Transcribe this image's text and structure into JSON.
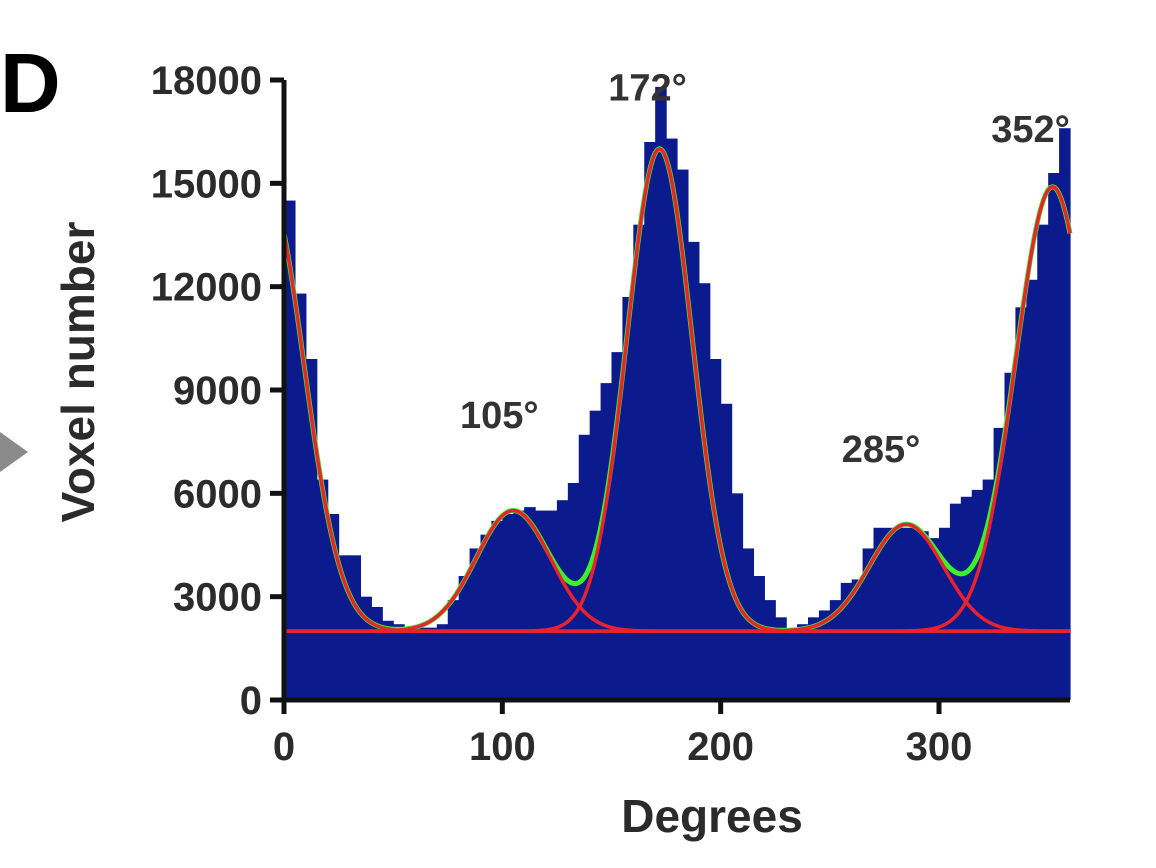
{
  "panel_label": "D",
  "colors": {
    "bars": "#0b1a8c",
    "component_curves": "#e8232f",
    "total_fit": "#3cf02a",
    "axis": "#111111",
    "text": "#2b2b2b",
    "side_arrow": "#8a8a8a"
  },
  "chart_data": {
    "type": "bar",
    "xlabel": "Degrees",
    "ylabel": "Voxel number",
    "xlim": [
      0,
      360
    ],
    "ylim": [
      0,
      18000
    ],
    "xticks": [
      0,
      100,
      200,
      300
    ],
    "yticks": [
      0,
      3000,
      6000,
      9000,
      12000,
      15000,
      18000
    ],
    "bin_width": 5,
    "bin_starts": [
      0,
      5,
      10,
      15,
      20,
      25,
      30,
      35,
      40,
      45,
      50,
      55,
      60,
      65,
      70,
      75,
      80,
      85,
      90,
      95,
      100,
      105,
      110,
      115,
      120,
      125,
      130,
      135,
      140,
      145,
      150,
      155,
      160,
      165,
      170,
      175,
      180,
      185,
      190,
      195,
      200,
      205,
      210,
      215,
      220,
      225,
      230,
      235,
      240,
      245,
      250,
      255,
      260,
      265,
      270,
      275,
      280,
      285,
      290,
      295,
      300,
      305,
      310,
      315,
      320,
      325,
      330,
      335,
      340,
      345,
      350,
      355
    ],
    "counts": [
      14500,
      11800,
      9900,
      6400,
      5400,
      4200,
      4200,
      3000,
      2700,
      2300,
      2200,
      2100,
      2100,
      2100,
      2200,
      2900,
      3600,
      4400,
      4800,
      5200,
      5400,
      5500,
      5600,
      5500,
      5500,
      5800,
      6300,
      7700,
      8400,
      9200,
      10100,
      11700,
      13800,
      16200,
      17800,
      16300,
      15400,
      13300,
      12100,
      9900,
      8600,
      6000,
      4400,
      3600,
      2900,
      2400,
      2000,
      2200,
      2400,
      2600,
      2900,
      3400,
      3500,
      4400,
      5000,
      5000,
      5000,
      5000,
      4900,
      4700,
      5000,
      5700,
      5900,
      6100,
      6400,
      7900,
      9500,
      11400,
      12200,
      13800,
      15300,
      16600
    ],
    "fit_components": [
      {
        "peak": 352,
        "baseline": 2000,
        "height": 12900,
        "sigma": 17
      },
      {
        "peak": 105,
        "baseline": 2000,
        "height": 3500,
        "sigma": 17
      },
      {
        "peak": 172,
        "baseline": 2000,
        "height": 14000,
        "sigma": 15
      },
      {
        "peak": 285,
        "baseline": 2000,
        "height": 3100,
        "sigma": 17
      }
    ],
    "annotations": [
      "105°",
      "172°",
      "285°",
      "352°"
    ]
  }
}
